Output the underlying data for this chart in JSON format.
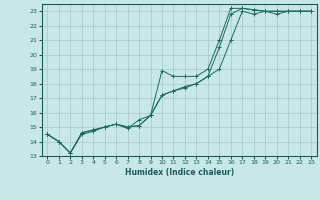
{
  "title": "",
  "xlabel": "Humidex (Indice chaleur)",
  "ylabel": "",
  "bg_color": "#c8e8e8",
  "grid_color": "#a8c8c8",
  "line_color": "#1a6b5a",
  "xlim": [
    -0.5,
    23.5
  ],
  "ylim": [
    13,
    23.5
  ],
  "xticks": [
    0,
    1,
    2,
    3,
    4,
    5,
    6,
    7,
    8,
    9,
    10,
    11,
    12,
    13,
    14,
    15,
    16,
    17,
    18,
    19,
    20,
    21,
    22,
    23
  ],
  "yticks": [
    13,
    14,
    15,
    16,
    17,
    18,
    19,
    20,
    21,
    22,
    23
  ],
  "series": [
    {
      "x": [
        0,
        1,
        2,
        3,
        4,
        5,
        6,
        7,
        8,
        9,
        10,
        11,
        12,
        13,
        14,
        15,
        16,
        17,
        18,
        19,
        20,
        21,
        22,
        23
      ],
      "y": [
        14.5,
        14.0,
        13.2,
        14.6,
        14.8,
        15.0,
        15.2,
        15.0,
        15.1,
        15.8,
        18.9,
        18.5,
        18.5,
        18.5,
        19.0,
        21.0,
        23.2,
        23.2,
        23.1,
        23.0,
        23.0,
        23.0,
        23.0,
        23.0
      ]
    },
    {
      "x": [
        0,
        1,
        2,
        3,
        4,
        5,
        6,
        7,
        8,
        9,
        10,
        11,
        12,
        13,
        14,
        15,
        16,
        17,
        18,
        19,
        20,
        21,
        22,
        23
      ],
      "y": [
        14.5,
        14.0,
        13.2,
        14.6,
        14.8,
        15.0,
        15.2,
        15.0,
        15.1,
        15.8,
        17.2,
        17.5,
        17.8,
        18.0,
        18.5,
        20.5,
        22.8,
        23.2,
        23.1,
        23.0,
        23.0,
        23.0,
        23.0,
        23.0
      ]
    },
    {
      "x": [
        0,
        1,
        2,
        3,
        4,
        5,
        6,
        7,
        8,
        9,
        10,
        11,
        12,
        13,
        14,
        15,
        16,
        17,
        18,
        19,
        20,
        21,
        22,
        23
      ],
      "y": [
        14.5,
        14.0,
        13.2,
        14.5,
        14.7,
        15.0,
        15.2,
        14.9,
        15.5,
        15.8,
        17.2,
        17.5,
        17.7,
        18.0,
        18.5,
        19.0,
        21.0,
        23.0,
        22.8,
        23.0,
        22.8,
        23.0,
        23.0,
        23.0
      ]
    }
  ]
}
